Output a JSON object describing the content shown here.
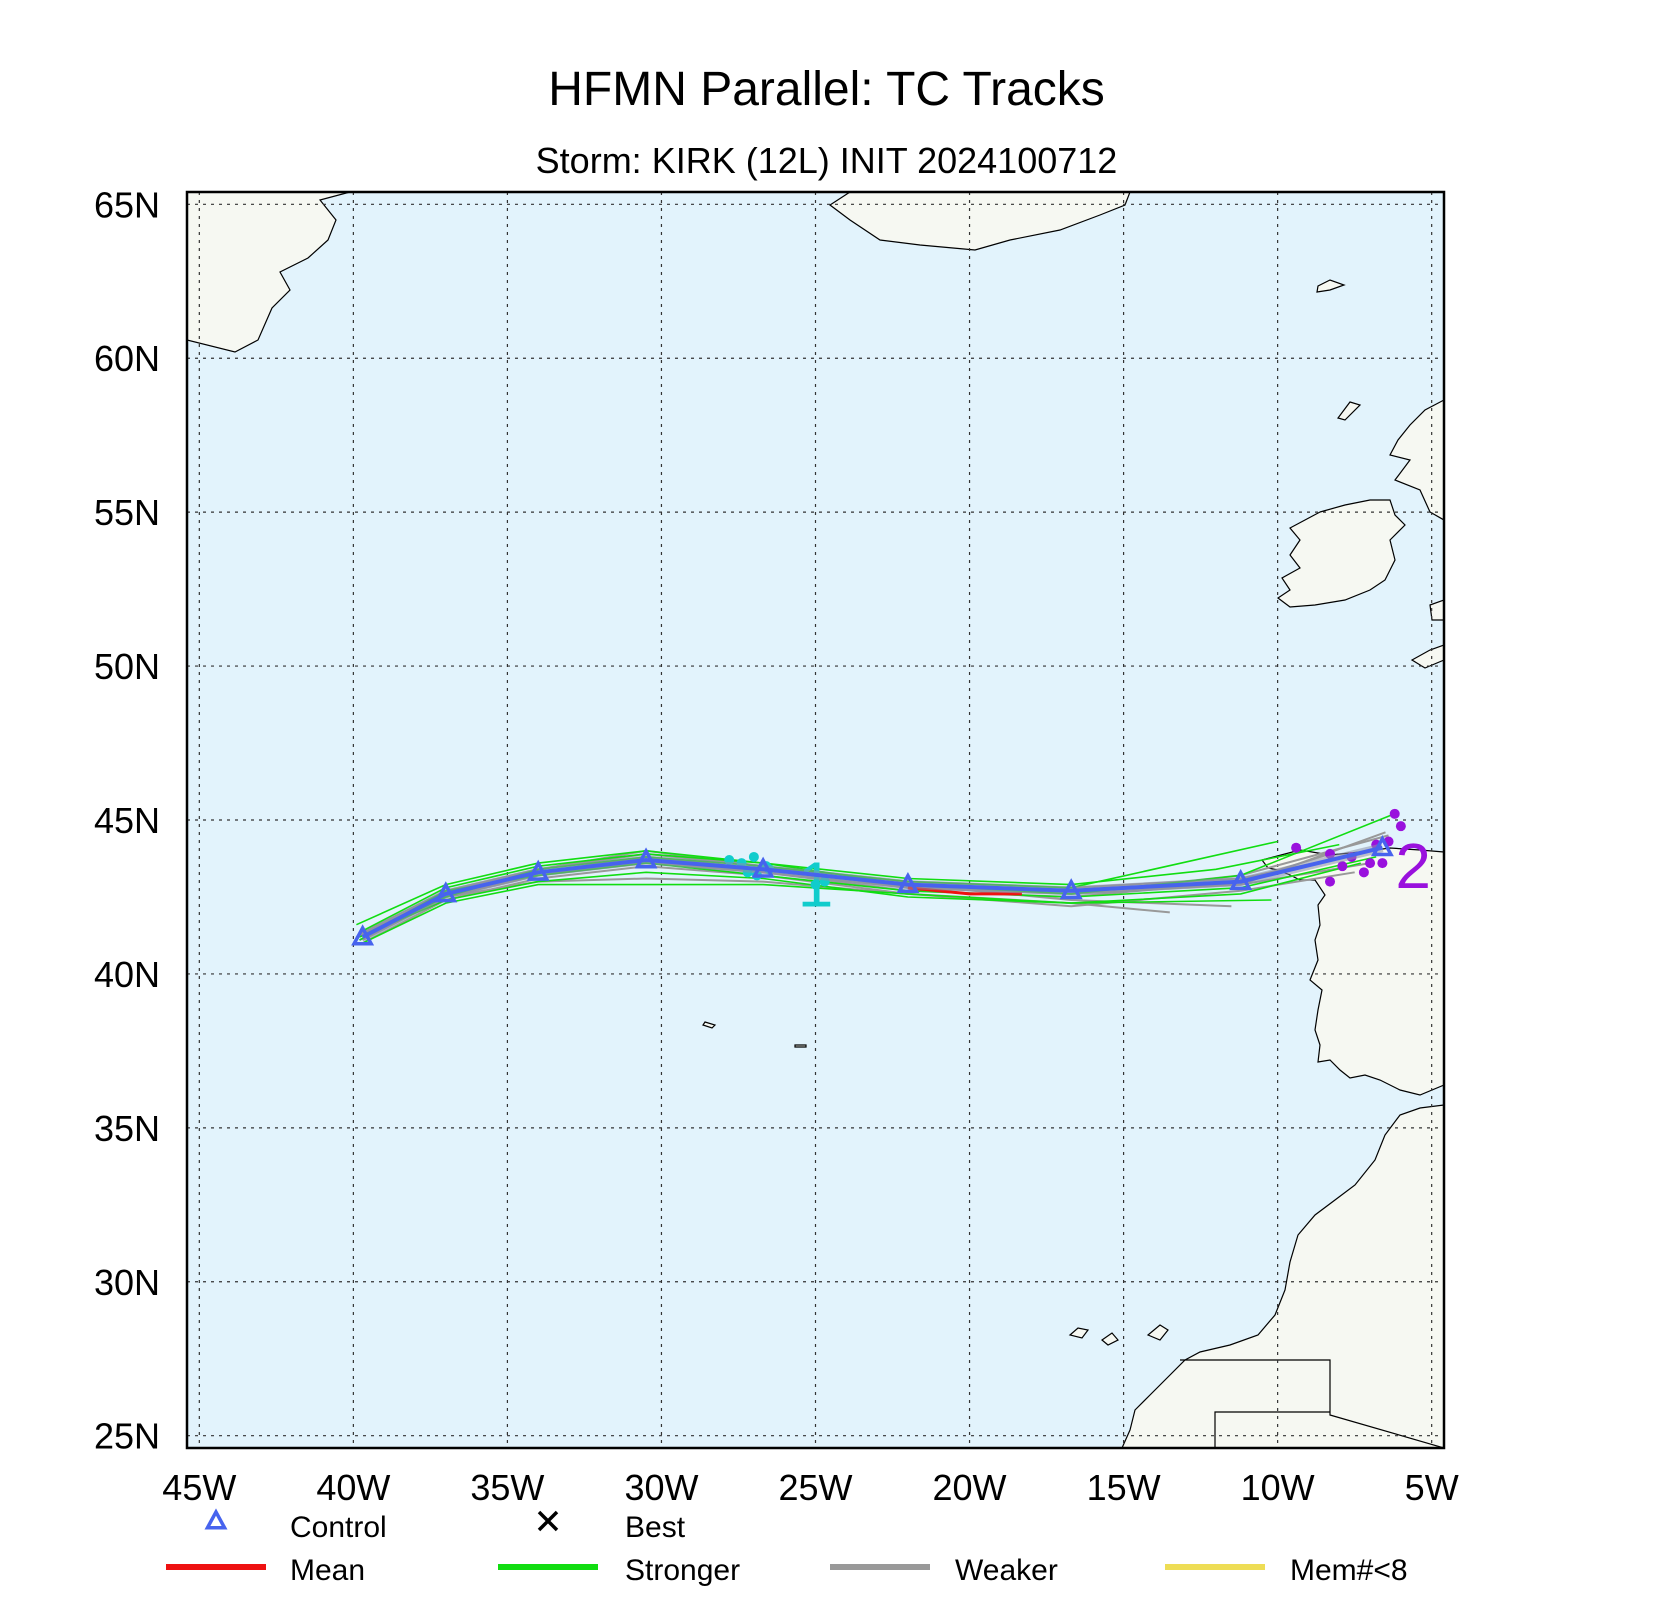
{
  "title": "HFMN Parallel: TC Tracks",
  "subtitle": "Storm: KIRK (12L) INIT 2024100712",
  "chart_data": {
    "type": "map",
    "projection": "lat-lon",
    "lon_range": [
      -45.4,
      -4.6
    ],
    "lat_range": [
      24.6,
      65.4
    ],
    "grid": true,
    "lon_ticks": [
      {
        "value": -45,
        "label": "45W"
      },
      {
        "value": -40,
        "label": "40W"
      },
      {
        "value": -35,
        "label": "35W"
      },
      {
        "value": -30,
        "label": "30W"
      },
      {
        "value": -25,
        "label": "25W"
      },
      {
        "value": -20,
        "label": "20W"
      },
      {
        "value": -15,
        "label": "15W"
      },
      {
        "value": -10,
        "label": "10W"
      },
      {
        "value": -5,
        "label": "5W"
      }
    ],
    "lat_ticks": [
      {
        "value": 25,
        "label": "25N"
      },
      {
        "value": 30,
        "label": "30N"
      },
      {
        "value": 35,
        "label": "35N"
      },
      {
        "value": 40,
        "label": "40N"
      },
      {
        "value": 45,
        "label": "45N"
      },
      {
        "value": 50,
        "label": "50N"
      },
      {
        "value": 55,
        "label": "55N"
      },
      {
        "value": 60,
        "label": "60N"
      },
      {
        "value": 65,
        "label": "65N"
      }
    ],
    "colors": {
      "ocean": "#e2f3fc",
      "land": "#f6f8f2",
      "coast": "#000000",
      "control": "#4763ee",
      "mean": "#ee1111",
      "stronger": "#11dd11",
      "weaker": "#999999",
      "member_lt8": "#eedd55",
      "day1_marker": "#11cccc",
      "day2_marker": "#9911dd"
    },
    "control_track": [
      {
        "lon": -39.7,
        "lat": 41.2
      },
      {
        "lon": -37.0,
        "lat": 42.6
      },
      {
        "lon": -34.0,
        "lat": 43.3
      },
      {
        "lon": -30.5,
        "lat": 43.7
      },
      {
        "lon": -26.7,
        "lat": 43.4
      },
      {
        "lon": -22.0,
        "lat": 42.9
      },
      {
        "lon": -16.7,
        "lat": 42.7
      },
      {
        "lon": -11.2,
        "lat": 43.0
      },
      {
        "lon": -6.6,
        "lat": 44.1
      }
    ],
    "mean_track": [
      {
        "lon": -22.0,
        "lat": 42.8
      },
      {
        "lon": -20.0,
        "lat": 42.6
      },
      {
        "lon": -18.3,
        "lat": 42.6
      }
    ],
    "stronger_tracks": [
      [
        [
          -39.9,
          41.6
        ],
        [
          -37.0,
          42.9
        ],
        [
          -34.0,
          43.6
        ],
        [
          -30.5,
          44.0
        ],
        [
          -26.7,
          43.6
        ],
        [
          -22.0,
          42.9
        ],
        [
          -16.7,
          42.6
        ],
        [
          -11.2,
          43.2
        ],
        [
          -6.2,
          45.2
        ]
      ],
      [
        [
          -39.7,
          41.0
        ],
        [
          -37.0,
          42.3
        ],
        [
          -34.0,
          42.9
        ],
        [
          -30.5,
          42.9
        ],
        [
          -26.7,
          42.9
        ],
        [
          -22.0,
          42.6
        ],
        [
          -16.7,
          42.3
        ],
        [
          -10.2,
          42.4
        ]
      ],
      [
        [
          -39.6,
          41.3
        ],
        [
          -37.0,
          42.5
        ],
        [
          -34.0,
          43.4
        ],
        [
          -30.5,
          43.8
        ],
        [
          -26.7,
          43.5
        ],
        [
          -22.0,
          43.0
        ],
        [
          -16.7,
          42.8
        ],
        [
          -10.0,
          44.3
        ]
      ],
      [
        [
          -39.8,
          41.1
        ],
        [
          -37.0,
          42.7
        ],
        [
          -34.0,
          43.2
        ],
        [
          -30.5,
          43.6
        ],
        [
          -26.7,
          43.2
        ],
        [
          -22.0,
          42.7
        ],
        [
          -16.7,
          42.5
        ],
        [
          -11.2,
          42.8
        ],
        [
          -6.8,
          43.8
        ]
      ],
      [
        [
          -39.7,
          41.4
        ],
        [
          -37.0,
          42.8
        ],
        [
          -34.0,
          43.5
        ],
        [
          -30.5,
          43.9
        ],
        [
          -26.7,
          43.6
        ],
        [
          -22.0,
          43.1
        ],
        [
          -16.7,
          42.9
        ],
        [
          -12.0,
          43.4
        ],
        [
          -8.0,
          44.2
        ]
      ],
      [
        [
          -39.8,
          41.2
        ],
        [
          -37.0,
          42.4
        ],
        [
          -34.0,
          43.0
        ],
        [
          -30.5,
          43.3
        ],
        [
          -26.7,
          43.1
        ],
        [
          -22.0,
          42.5
        ],
        [
          -16.7,
          42.3
        ],
        [
          -11.2,
          42.6
        ],
        [
          -7.3,
          43.6
        ]
      ]
    ],
    "weaker_tracks": [
      [
        [
          -39.7,
          41.1
        ],
        [
          -37.0,
          42.5
        ],
        [
          -34.0,
          43.2
        ],
        [
          -30.5,
          43.6
        ],
        [
          -26.7,
          43.3
        ],
        [
          -22.0,
          42.8
        ],
        [
          -16.7,
          42.6
        ],
        [
          -11.2,
          42.9
        ],
        [
          -6.5,
          44.6
        ]
      ],
      [
        [
          -39.6,
          41.2
        ],
        [
          -37.0,
          42.6
        ],
        [
          -34.0,
          43.3
        ],
        [
          -30.5,
          43.8
        ],
        [
          -26.7,
          43.4
        ],
        [
          -22.0,
          42.9
        ],
        [
          -16.7,
          42.4
        ],
        [
          -11.5,
          42.2
        ]
      ],
      [
        [
          -39.8,
          41.3
        ],
        [
          -37.0,
          42.7
        ],
        [
          -34.0,
          43.4
        ],
        [
          -30.5,
          43.9
        ],
        [
          -26.7,
          43.5
        ],
        [
          -22.0,
          43.0
        ],
        [
          -16.7,
          42.8
        ],
        [
          -11.2,
          43.1
        ],
        [
          -6.9,
          44.0
        ]
      ],
      [
        [
          -39.7,
          41.0
        ],
        [
          -37.0,
          42.4
        ],
        [
          -34.0,
          43.1
        ],
        [
          -30.5,
          43.5
        ],
        [
          -26.7,
          43.2
        ],
        [
          -22.0,
          42.6
        ],
        [
          -16.7,
          42.2
        ],
        [
          -11.2,
          42.7
        ],
        [
          -7.5,
          43.3
        ]
      ],
      [
        [
          -39.9,
          41.2
        ],
        [
          -37.0,
          42.6
        ],
        [
          -34.0,
          43.2
        ],
        [
          -30.5,
          43.7
        ],
        [
          -26.7,
          43.3
        ],
        [
          -22.0,
          42.7
        ],
        [
          -16.7,
          42.5
        ],
        [
          -11.2,
          43.0
        ],
        [
          -8.3,
          43.9
        ]
      ],
      [
        [
          -39.6,
          41.3
        ],
        [
          -37.0,
          42.5
        ],
        [
          -34.0,
          43.3
        ],
        [
          -30.5,
          43.6
        ],
        [
          -26.7,
          43.4
        ],
        [
          -22.0,
          42.9
        ],
        [
          -16.7,
          42.7
        ],
        [
          -11.2,
          42.9
        ],
        [
          -7.0,
          43.6
        ]
      ],
      [
        [
          -39.7,
          41.2
        ],
        [
          -37.0,
          42.7
        ],
        [
          -34.0,
          43.4
        ],
        [
          -30.5,
          44.0
        ],
        [
          -26.7,
          43.5
        ],
        [
          -22.0,
          42.8
        ],
        [
          -16.7,
          42.6
        ],
        [
          -11.2,
          43.2
        ],
        [
          -6.4,
          44.5
        ]
      ],
      [
        [
          -39.8,
          41.1
        ],
        [
          -37.0,
          42.5
        ],
        [
          -34.0,
          43.0
        ],
        [
          -30.5,
          43.1
        ],
        [
          -26.7,
          43.0
        ],
        [
          -22.0,
          42.6
        ],
        [
          -16.7,
          42.3
        ],
        [
          -13.5,
          42.0
        ]
      ]
    ],
    "day1_markers": [
      {
        "lon": -27.8,
        "lat": 43.7
      },
      {
        "lon": -27.4,
        "lat": 43.6
      },
      {
        "lon": -27.0,
        "lat": 43.8
      },
      {
        "lon": -26.6,
        "lat": 43.5
      },
      {
        "lon": -27.2,
        "lat": 43.3
      },
      {
        "lon": -26.9,
        "lat": 43.2
      },
      {
        "lon": -26.5,
        "lat": 43.4
      },
      {
        "lon": -25.0,
        "lat": 42.9
      },
      {
        "lon": -24.7,
        "lat": 43.0
      }
    ],
    "day2_markers": [
      {
        "lon": -6.2,
        "lat": 45.2
      },
      {
        "lon": -6.0,
        "lat": 44.8
      },
      {
        "lon": -9.4,
        "lat": 44.1
      },
      {
        "lon": -8.3,
        "lat": 43.9
      },
      {
        "lon": -7.6,
        "lat": 43.8
      },
      {
        "lon": -7.0,
        "lat": 43.6
      },
      {
        "lon": -6.6,
        "lat": 43.6
      },
      {
        "lon": -7.2,
        "lat": 43.3
      },
      {
        "lon": -6.8,
        "lat": 44.2
      },
      {
        "lon": -8.3,
        "lat": 43.0
      },
      {
        "lon": -7.9,
        "lat": 43.5
      },
      {
        "lon": -6.4,
        "lat": 44.3
      }
    ],
    "day_labels": [
      {
        "text": "1",
        "lon": -25.0,
        "lat": 42.9,
        "color_key": "day1_marker"
      },
      {
        "text": "2",
        "lon": -5.6,
        "lat": 43.5,
        "color_key": "day2_marker"
      }
    ],
    "legend": [
      {
        "label": "Control",
        "symbol": "triangle",
        "color_key": "control"
      },
      {
        "label": "Best",
        "symbol": "x",
        "color_key": "coast"
      },
      {
        "label": "Mean",
        "symbol": "line",
        "color_key": "mean"
      },
      {
        "label": "Stronger",
        "symbol": "line",
        "color_key": "stronger"
      },
      {
        "label": "Weaker",
        "symbol": "line",
        "color_key": "weaker"
      },
      {
        "label": "Mem#<8",
        "symbol": "line",
        "color_key": "member_lt8"
      }
    ]
  }
}
